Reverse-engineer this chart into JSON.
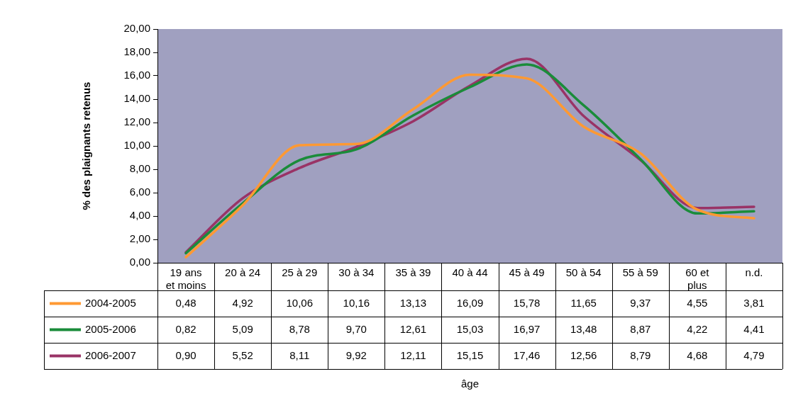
{
  "chart_data": {
    "type": "line",
    "ylabel": "% des plaignants retenus",
    "annotations": [
      "âge"
    ],
    "categories": [
      "19 ans et moins",
      "20 à 24",
      "25 à 29",
      "30 à 34",
      "35 à 39",
      "40 à 44",
      "45 à 49",
      "50 à 54",
      "55 à 59",
      "60 et plus",
      "n.d."
    ],
    "series": [
      {
        "name": "2004-2005",
        "color": "#ff9933",
        "values": [
          0.48,
          4.92,
          10.06,
          10.16,
          13.13,
          16.09,
          15.78,
          11.65,
          9.37,
          4.55,
          3.81
        ],
        "value_labels": [
          "0,48",
          "4,92",
          "10,06",
          "10,16",
          "13,13",
          "16,09",
          "15,78",
          "11,65",
          "9,37",
          "4,55",
          "3,81"
        ]
      },
      {
        "name": "2005-2006",
        "color": "#1a8c3a",
        "values": [
          0.82,
          5.09,
          8.78,
          9.7,
          12.61,
          15.03,
          16.97,
          13.48,
          8.87,
          4.22,
          4.41
        ],
        "value_labels": [
          "0,82",
          "5,09",
          "8,78",
          "9,70",
          "12,61",
          "15,03",
          "16,97",
          "13,48",
          "8,87",
          "4,22",
          "4,41"
        ]
      },
      {
        "name": "2006-2007",
        "color": "#993366",
        "values": [
          0.9,
          5.52,
          8.11,
          9.92,
          12.11,
          15.15,
          17.46,
          12.56,
          8.79,
          4.68,
          4.79
        ],
        "value_labels": [
          "0,90",
          "5,52",
          "8,11",
          "9,92",
          "12,11",
          "15,15",
          "17,46",
          "12,56",
          "8,79",
          "4,68",
          "4,79"
        ]
      }
    ],
    "ylim": [
      0,
      20
    ],
    "yticks": [
      {
        "value": 0,
        "label": "0,00"
      },
      {
        "value": 2,
        "label": "2,00"
      },
      {
        "value": 4,
        "label": "4,00"
      },
      {
        "value": 6,
        "label": "6,00"
      },
      {
        "value": 8,
        "label": "8,00"
      },
      {
        "value": 10,
        "label": "10,00"
      },
      {
        "value": 12,
        "label": "12,00"
      },
      {
        "value": 14,
        "label": "14,00"
      },
      {
        "value": 16,
        "label": "16,00"
      },
      {
        "value": 18,
        "label": "18,00"
      },
      {
        "value": 20,
        "label": "20,00"
      }
    ],
    "grid": false,
    "legend": "bottom",
    "marker": "none",
    "line_style": "solid"
  }
}
